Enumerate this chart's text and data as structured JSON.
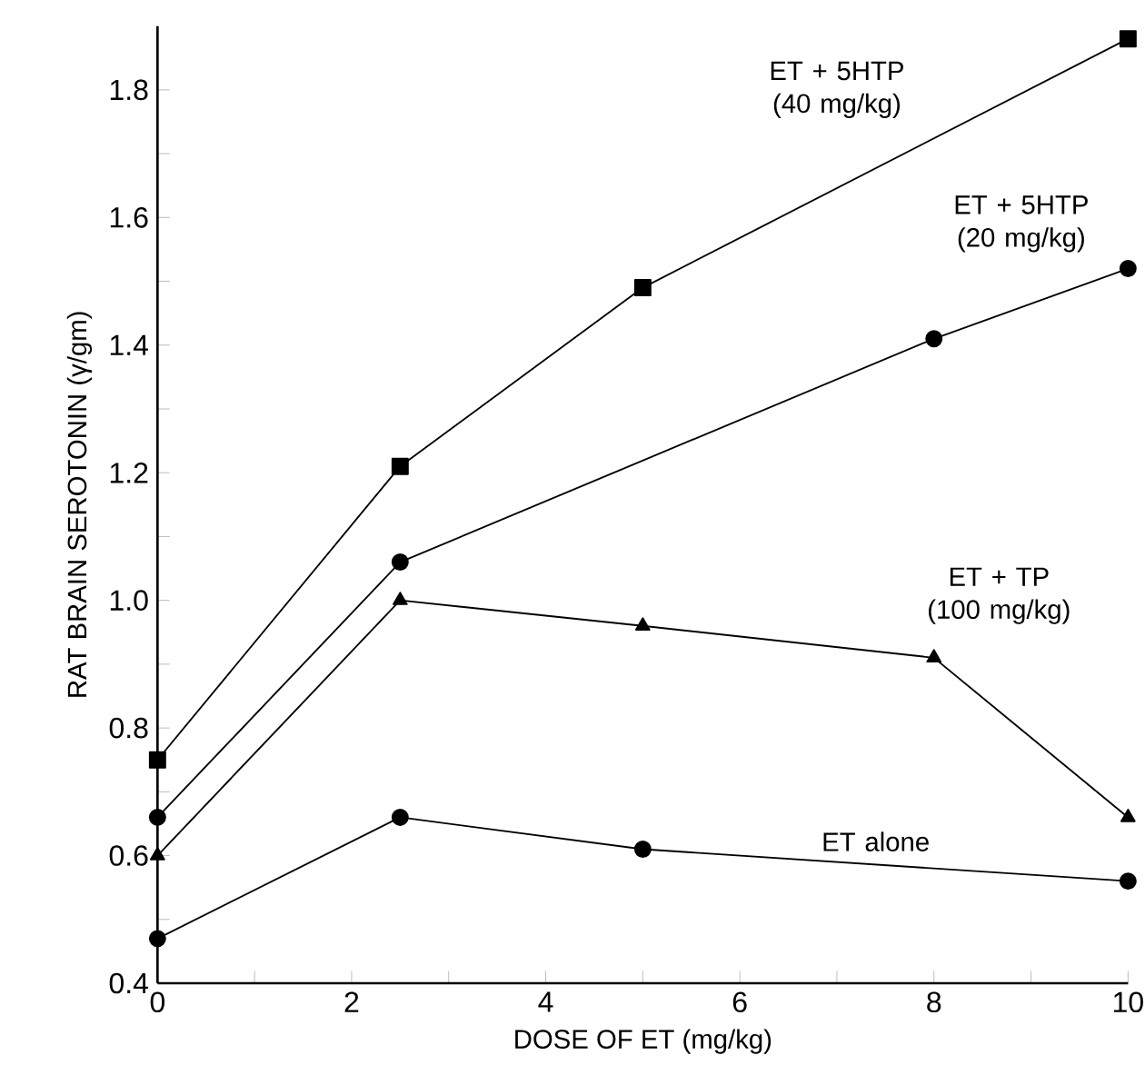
{
  "chart_data": {
    "type": "line",
    "xlabel": "DOSE OF ET (mg/kg)",
    "ylabel": "RAT BRAIN SEROTONIN (γ/gm)",
    "xlim": [
      0,
      10
    ],
    "ylim": [
      0.4,
      1.9
    ],
    "xticks": [
      0,
      {
        "value": 1,
        "label": null
      },
      2,
      {
        "value": 3,
        "label": null
      },
      4,
      {
        "value": 5,
        "label": null
      },
      6,
      {
        "value": 7,
        "label": null
      },
      8,
      {
        "value": 9,
        "label": null
      },
      10
    ],
    "yticks": [
      0.4,
      {
        "value": 0.5,
        "label": null
      },
      0.6,
      {
        "value": 0.7,
        "label": null
      },
      0.8,
      {
        "value": 0.9,
        "label": null
      },
      {
        "value": 1.0,
        "label": "1.0"
      },
      {
        "value": 1.1,
        "label": null
      },
      1.2,
      {
        "value": 1.3,
        "label": null
      },
      1.4,
      {
        "value": 1.5,
        "label": null
      },
      1.6,
      {
        "value": 1.7,
        "label": null
      },
      1.8
    ],
    "grid": false,
    "legend": false,
    "line_style": "solid",
    "series": [
      {
        "name": "ET + 5HTP (40 mg/kg)",
        "color": "#000000",
        "marker": "square",
        "x": [
          0,
          2.5,
          5,
          10
        ],
        "values": [
          0.75,
          1.21,
          1.49,
          1.88
        ]
      },
      {
        "name": "ET + 5HTP (20 mg/kg)",
        "color": "#000000",
        "marker": "circle",
        "x": [
          0,
          2.5,
          8,
          10
        ],
        "values": [
          0.66,
          1.06,
          1.41,
          1.52
        ]
      },
      {
        "name": "ET + TP (100 mg/kg)",
        "color": "#000000",
        "marker": "triangle",
        "x": [
          0,
          2.5,
          5,
          8,
          10
        ],
        "values": [
          0.6,
          1.0,
          0.96,
          0.91,
          0.66
        ]
      },
      {
        "name": "ET alone",
        "color": "#000000",
        "marker": "circle",
        "x": [
          0,
          2.5,
          5,
          10
        ],
        "values": [
          0.47,
          0.66,
          0.61,
          0.56
        ]
      }
    ]
  }
}
